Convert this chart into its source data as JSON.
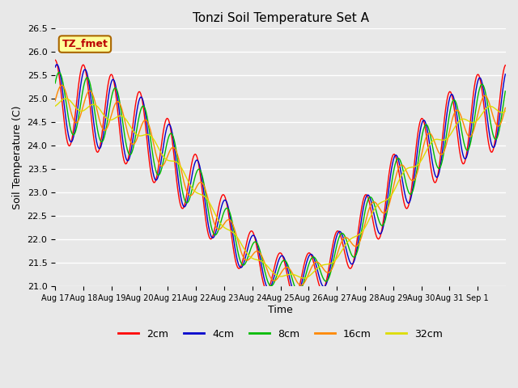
{
  "title": "Tonzi Soil Temperature Set A",
  "xlabel": "Time",
  "ylabel": "Soil Temperature (C)",
  "ylim": [
    21.0,
    26.5
  ],
  "xlim": [
    0,
    16
  ],
  "annotation_text": "TZ_fmet",
  "annotation_bg": "#ffff99",
  "annotation_border": "#aa6600",
  "fig_bg": "#e8e8e8",
  "plot_bg": "#e8e8e8",
  "grid_color": "#ffffff",
  "series_colors": {
    "2cm": "#ff0000",
    "4cm": "#0000cc",
    "8cm": "#00bb00",
    "16cm": "#ff8800",
    "32cm": "#dddd00"
  },
  "x_tick_labels": [
    "Aug 17",
    "Aug 18",
    "Aug 19",
    "Aug 20",
    "Aug 21",
    "Aug 22",
    "Aug 23",
    "Aug 24",
    "Aug 25",
    "Aug 26",
    "Aug 27",
    "Aug 28",
    "Aug 29",
    "Aug 30",
    "Aug 31",
    "Sep 1"
  ],
  "y_ticks": [
    21.0,
    21.5,
    22.0,
    22.5,
    23.0,
    23.5,
    24.0,
    24.5,
    25.0,
    25.5,
    26.0,
    26.5
  ],
  "legend_items": [
    "2cm",
    "4cm",
    "8cm",
    "16cm",
    "32cm"
  ],
  "figsize": [
    6.4,
    4.8
  ],
  "dpi": 100
}
